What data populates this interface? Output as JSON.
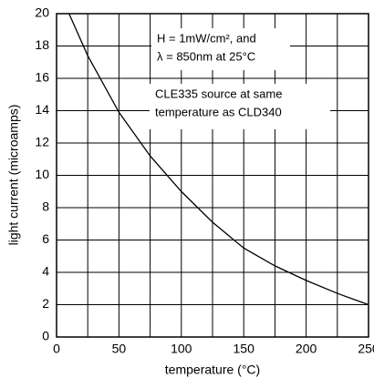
{
  "chart_data": {
    "type": "line",
    "x_label": "temperature (°C)",
    "y_label": "light current (microamps)",
    "x": [
      10,
      25,
      50,
      75,
      100,
      125,
      150,
      175,
      200,
      225,
      250
    ],
    "values": [
      20,
      17.4,
      13.9,
      11.2,
      9.0,
      7.1,
      5.5,
      4.4,
      3.5,
      2.7,
      2.0
    ],
    "color": "#000000",
    "xlim": [
      0,
      250
    ],
    "xticks": [
      0,
      50,
      100,
      150,
      200,
      250
    ],
    "xgrid": [
      0,
      25,
      50,
      75,
      100,
      125,
      150,
      175,
      200,
      225,
      250
    ],
    "ylim": [
      0,
      20
    ],
    "yticks": [
      0,
      2,
      4,
      6,
      8,
      10,
      12,
      14,
      16,
      18,
      20
    ],
    "grid": true,
    "annotations": [
      {
        "lines": [
          "H = 1mW/cm², and",
          "λ = 850nm at 25°C"
        ]
      },
      {
        "lines": [
          "CLE335 source at same",
          "temperature as  CLD340"
        ]
      }
    ]
  }
}
